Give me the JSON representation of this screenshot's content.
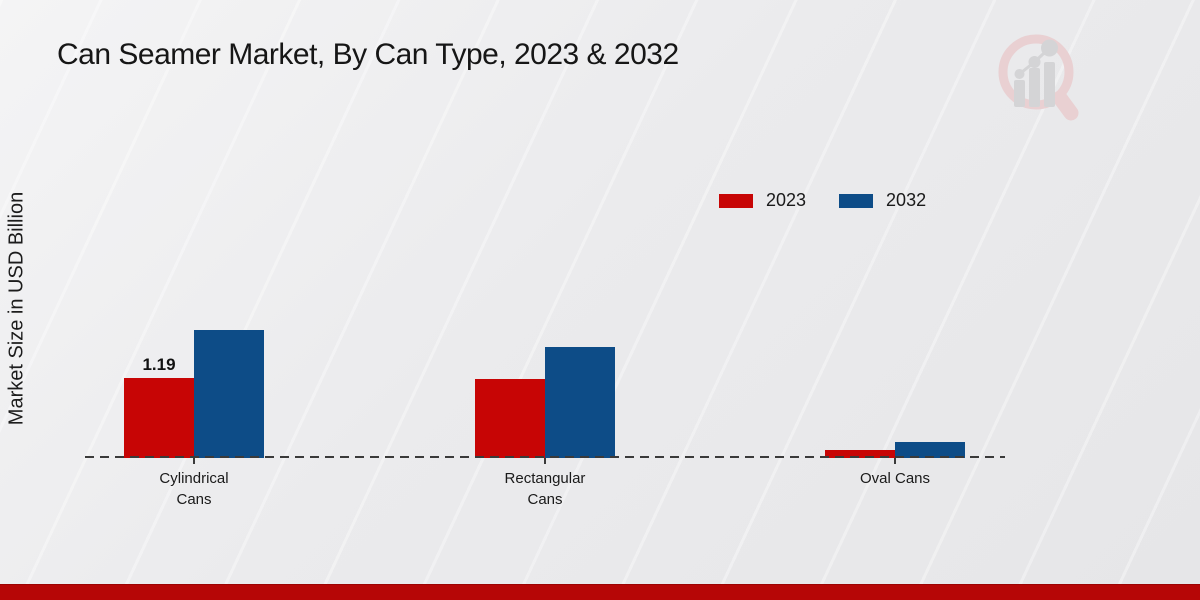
{
  "header": {
    "title": "Can Seamer Market, By Can Type, 2023 & 2032"
  },
  "chart_data": {
    "type": "bar",
    "title": "Can Seamer Market, By Can Type, 2023 & 2032",
    "ylabel": "Market Size in USD Billion",
    "xlabel": "",
    "categories": [
      "Cylindrical\nCans",
      "Rectangular\nCans",
      "Oval Cans"
    ],
    "series": [
      {
        "name": "2023",
        "color": "#c70505",
        "values": [
          1.19,
          1.17,
          0.12
        ],
        "labels": [
          "1.19",
          "",
          ""
        ]
      },
      {
        "name": "2032",
        "color": "#0d4c87",
        "values": [
          1.9,
          1.65,
          0.24
        ],
        "labels": [
          "",
          "",
          ""
        ]
      }
    ],
    "ylim": [
      0,
      2.1
    ],
    "grid": false,
    "axis_style": "dashed-baseline-only",
    "legend_position": "top-right"
  },
  "colors": {
    "bar_2023": "#c70505",
    "bar_2032": "#0d4c87",
    "dashed_baseline": "#3a3a3a",
    "bottom_stripe": "#b60606",
    "text": "#1a1a1a",
    "watermark_ring": "#e9d0d2",
    "watermark_bars": "#d4d4d6"
  },
  "watermark": {
    "name": "magnifier-bar-chart-logo"
  }
}
